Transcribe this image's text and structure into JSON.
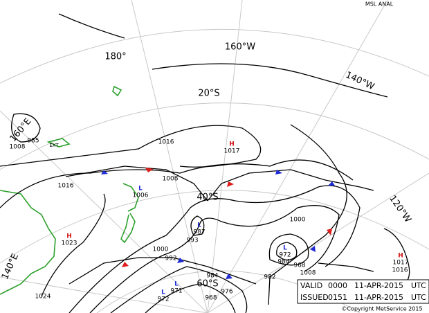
{
  "header": {
    "title": "MSL ANAL"
  },
  "graticule": [
    "180°",
    "160°W",
    "140°W",
    "120°W",
    "20°S",
    "40°S",
    "60°S",
    "160°E",
    "140°E"
  ],
  "pressure_centres": [
    {
      "type": "H",
      "value": 1017
    },
    {
      "type": "H",
      "value": 1023
    },
    {
      "type": "H",
      "value": 1017
    },
    {
      "type": "L",
      "value": 1006
    },
    {
      "type": "L",
      "value": 987
    },
    {
      "type": "L",
      "value": 972
    },
    {
      "type": "L",
      "value": 971
    },
    {
      "type": "L",
      "value": 972
    }
  ],
  "isobar_labels": [
    1008,
    985,
    1016,
    1016,
    1008,
    993,
    1000,
    992,
    984,
    976,
    968,
    1000,
    984,
    968,
    1008,
    982,
    1016,
    1024
  ],
  "other_labels": [
    "EXT"
  ],
  "footer": {
    "valid": {
      "label": "VALID",
      "time": "0000",
      "date": "11-APR-2015",
      "zone": "UTC"
    },
    "issued": {
      "label": "ISSUED",
      "time": "0151",
      "date": "11-APR-2015",
      "zone": "UTC"
    },
    "copyright": "©Copyright MetService 2015"
  }
}
